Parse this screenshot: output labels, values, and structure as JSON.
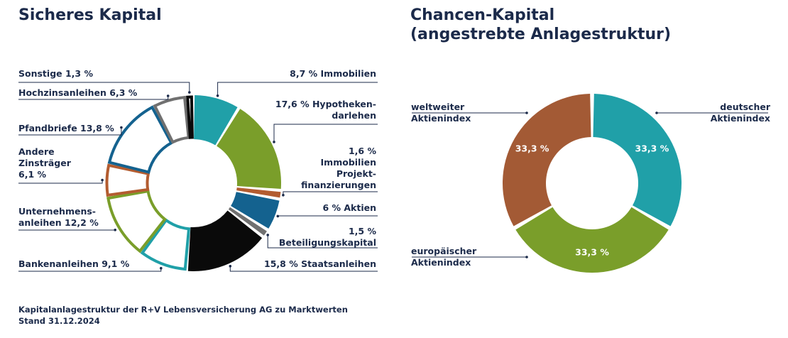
{
  "chart_data": [
    {
      "type": "pie",
      "title": "Sicheres Kapital",
      "slices": [
        {
          "name": "Immobilien",
          "value": 8.7,
          "label": "8,7 % Immobilien",
          "color": "#20a0a8",
          "style": "solid"
        },
        {
          "name": "Hypothekendarlehen",
          "value": 17.6,
          "label": "17,6 % Hypotheken-darlehen",
          "label_lines": [
            "17,6 % Hypotheken-",
            "darlehen"
          ],
          "color": "#7a9e2a",
          "style": "solid"
        },
        {
          "name": "Immobilien Projektfinanzierungen",
          "value": 1.6,
          "label": "1,6 % Immobilien Projekt-finanzierungen",
          "label_lines": [
            "1,6 %",
            "Immobilien",
            "Projekt-",
            "finanzierungen"
          ],
          "color": "#b35c30",
          "style": "solid"
        },
        {
          "name": "Aktien",
          "value": 6.0,
          "label": "6 % Aktien",
          "color": "#14628f",
          "style": "solid"
        },
        {
          "name": "Beteiligungskapital",
          "value": 1.5,
          "label": "1,5 % Beteiligungskapital",
          "label_lines": [
            "1,5 %",
            "Beteiligungskapital"
          ],
          "color": "#707070",
          "style": "solid"
        },
        {
          "name": "Staatsanleihen",
          "value": 15.8,
          "label": "15,8 % Staatsanleihen",
          "color": "#0a0a0a",
          "style": "solid"
        },
        {
          "name": "Bankenanleihen",
          "value": 9.1,
          "label": "Bankenanleihen 9,1 %",
          "color": "#20a0a8",
          "style": "outline"
        },
        {
          "name": "Unternehmensanleihen",
          "value": 12.2,
          "label": "Unternehmens-anleihen 12,2 %",
          "label_lines": [
            "Unternehmens-",
            "anleihen 12,2 %"
          ],
          "color": "#7a9e2a",
          "style": "outline"
        },
        {
          "name": "Andere Zinsträger",
          "value": 6.1,
          "label": "Andere Zinsträger 6,1 %",
          "label_lines": [
            "Andere",
            "Zinsträger",
            "6,1 %"
          ],
          "color": "#b35c30",
          "style": "outline"
        },
        {
          "name": "Pfandbriefe",
          "value": 13.8,
          "label": "Pfandbriefe 13,8 %",
          "color": "#14628f",
          "style": "outline"
        },
        {
          "name": "Hochzinsanleihen",
          "value": 6.3,
          "label": "Hochzinsanleihen 6,3 %",
          "color": "#707070",
          "style": "outline"
        },
        {
          "name": "Sonstige",
          "value": 1.3,
          "label": "Sonstige 1,3 %",
          "color": "#0a0a0a",
          "style": "outline"
        }
      ]
    },
    {
      "type": "pie",
      "title": "Chancen-Kapital (angestrebte Anlagestruktur)",
      "title_lines": [
        "Chancen-Kapital",
        "(angestrebte Anlagestruktur)"
      ],
      "slices": [
        {
          "name": "deutscher Aktienindex",
          "value": 33.3,
          "value_label": "33,3 %",
          "label_lines": [
            "deutscher",
            "Aktienindex"
          ],
          "color": "#20a0a8"
        },
        {
          "name": "europäischer Aktienindex",
          "value": 33.3,
          "value_label": "33,3 %",
          "label_lines": [
            "europäischer",
            "Aktienindex"
          ],
          "color": "#7a9e2a"
        },
        {
          "name": "weltweiter Aktienindex",
          "value": 33.3,
          "value_label": "33,3 %",
          "label_lines": [
            "weltweiter",
            "Aktienindex"
          ],
          "color": "#a35a35"
        }
      ]
    }
  ],
  "footer": {
    "line1": "Kapitalanlagestruktur der R+V Lebensversicherung AG zu Marktwerten",
    "line2": "Stand 31.12.2024"
  }
}
